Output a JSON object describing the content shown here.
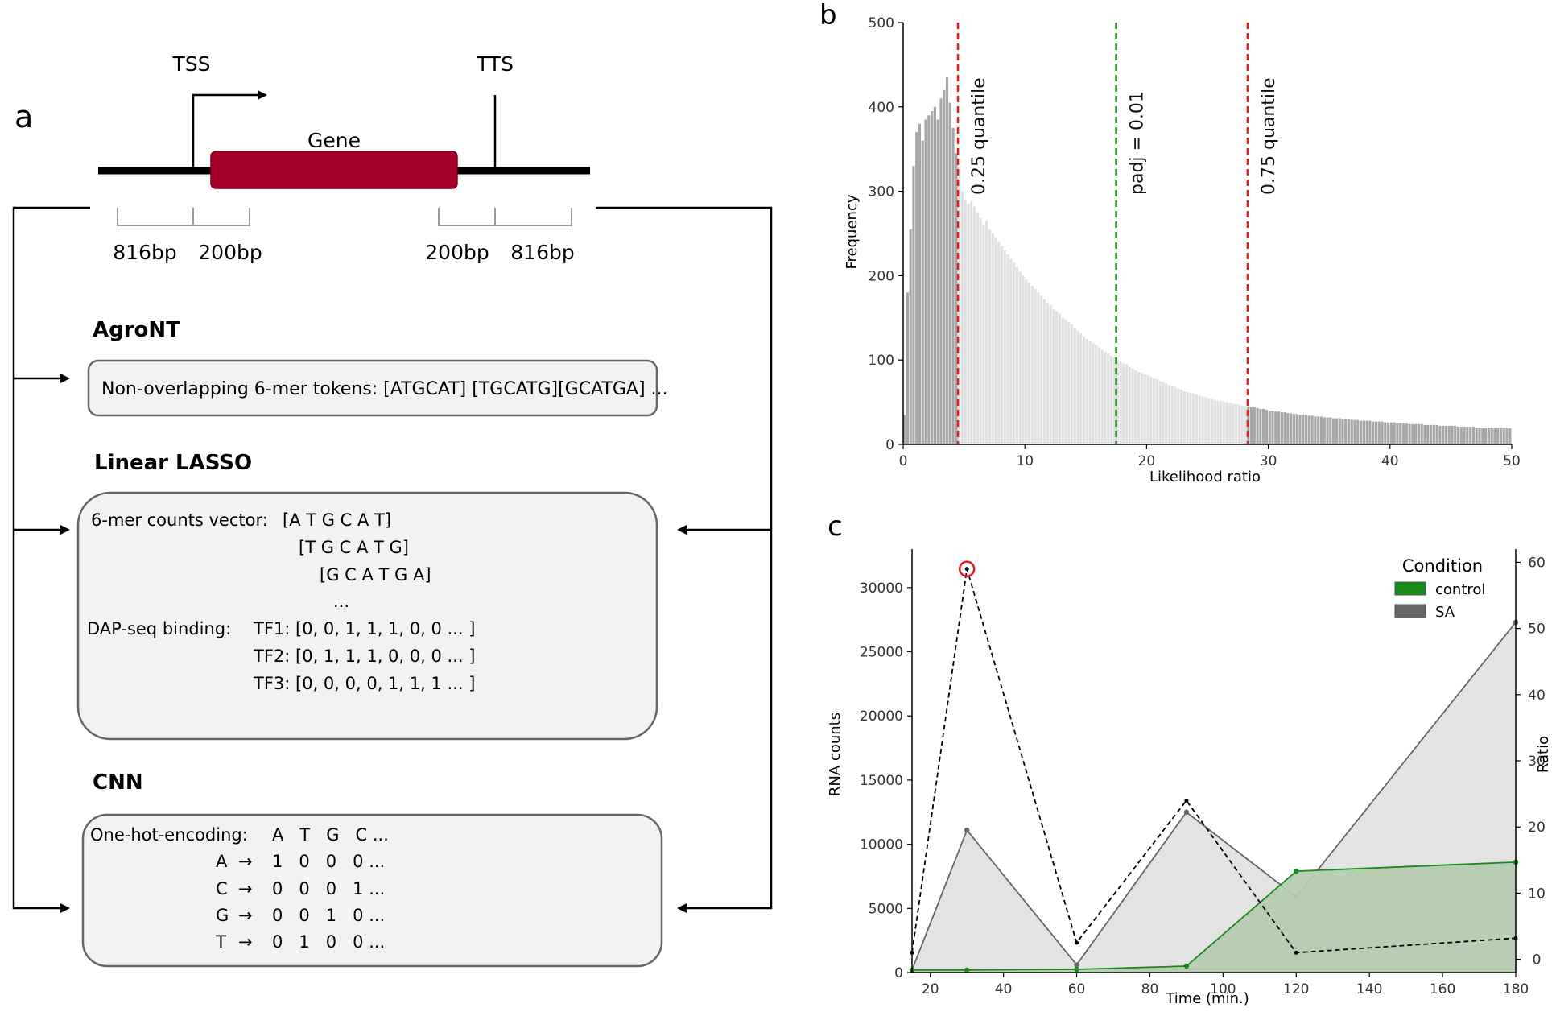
{
  "panel_a": {
    "panel_label": "a",
    "tss_label": "TSS",
    "tts_label": "TTS",
    "gene_label": "Gene",
    "bp_labels": [
      "816bp",
      "200bp",
      "200bp",
      "816bp"
    ],
    "agront": {
      "title": "AgroNT",
      "text": "Non-overlapping 6-mer tokens: [ATGCAT] [TGCATG][GCATGA] ..."
    },
    "lasso": {
      "title": "Linear LASSO",
      "kmer_label": "6-mer counts vector:",
      "kmer_rows": [
        "[A T G C A T]",
        "[T G C A T G]",
        "[G C A T G A]",
        "..."
      ],
      "dap_label": "DAP-seq binding:",
      "tf_rows": [
        "TF1: [0, 0, 1, 1, 1, 0, 0 ... ]",
        "TF2: [0, 1, 1, 1, 0, 0, 0 ... ]",
        "TF3: [0, 0, 0, 0, 1, 1, 1 ... ]"
      ]
    },
    "cnn": {
      "title": "CNN",
      "onehot_label": "One-hot-encoding:",
      "header": "A   T   G   C ...",
      "rows": [
        {
          "base": "A",
          "arrow": "→",
          "vals": "1   0   0   0 ..."
        },
        {
          "base": "C",
          "arrow": "→",
          "vals": "0   0   0   1 ..."
        },
        {
          "base": "G",
          "arrow": "→",
          "vals": "0   0   1   0 ..."
        },
        {
          "base": "T",
          "arrow": "→",
          "vals": "0   1   0   0 ..."
        }
      ]
    },
    "colors": {
      "gene": "#a50026",
      "box_fill": "#f2f2f2",
      "box_stroke": "#666666"
    }
  },
  "chart_data": [
    {
      "panel_label": "b",
      "type": "bar",
      "xlabel": "Likelihood ratio",
      "ylabel": "Frequency",
      "xlim": [
        0,
        50
      ],
      "ylim": [
        0,
        500
      ],
      "xticks": [
        0,
        10,
        20,
        30,
        40,
        50
      ],
      "yticks": [
        0,
        100,
        200,
        300,
        400,
        500
      ],
      "bin_width": 0.25,
      "values": [
        35,
        180,
        255,
        330,
        370,
        380,
        360,
        385,
        390,
        395,
        400,
        385,
        410,
        420,
        435,
        405,
        375,
        345,
        330,
        300,
        290,
        285,
        288,
        282,
        275,
        268,
        260,
        265,
        255,
        250,
        245,
        240,
        235,
        230,
        225,
        220,
        215,
        210,
        205,
        200,
        195,
        192,
        188,
        184,
        180,
        176,
        172,
        168,
        165,
        160,
        158,
        155,
        150,
        148,
        145,
        142,
        138,
        135,
        132,
        128,
        125,
        122,
        120,
        118,
        115,
        112,
        110,
        108,
        105,
        103,
        100,
        98,
        96,
        95,
        92,
        90,
        88,
        86,
        85,
        83,
        82,
        80,
        78,
        77,
        75,
        74,
        72,
        70,
        69,
        68,
        66,
        65,
        63,
        62,
        61,
        60,
        59,
        58,
        57,
        56,
        55,
        54,
        53,
        52,
        52,
        51,
        50,
        49,
        48,
        48,
        47,
        46,
        46,
        45,
        44,
        44,
        43,
        42,
        42,
        41,
        40,
        40,
        39,
        39,
        38,
        38,
        37,
        37,
        36,
        36,
        35,
        35,
        35,
        34,
        34,
        33,
        33,
        33,
        32,
        32,
        32,
        31,
        31,
        31,
        30,
        30,
        30,
        29,
        29,
        29,
        28,
        28,
        28,
        28,
        27,
        27,
        27,
        27,
        26,
        26,
        26,
        26,
        25,
        25,
        25,
        25,
        24,
        24,
        24,
        24,
        24,
        23,
        23,
        23,
        23,
        23,
        22,
        22,
        22,
        22,
        22,
        22,
        21,
        21,
        21,
        21,
        21,
        21,
        20,
        20,
        20,
        20,
        20,
        20,
        19,
        19,
        19,
        19,
        19,
        19
      ],
      "highlight_below": 4.5,
      "highlight_above": 28.3,
      "vlines": [
        {
          "x": 4.5,
          "label": "0.25 quantile",
          "color": "#e41a1c"
        },
        {
          "x": 17.5,
          "label": "padj = 0.01",
          "color": "#1a8a1a"
        },
        {
          "x": 28.3,
          "label": "0.75 quantile",
          "color": "#e41a1c"
        }
      ],
      "colors": {
        "dark": "#a6a6a6",
        "light": "#e0e0e0"
      }
    },
    {
      "panel_label": "c",
      "type": "area",
      "xlabel": "Time (min.)",
      "ylabel": "RNA counts",
      "y2label": "Ratio",
      "xlim": [
        15,
        180
      ],
      "ylim": [
        0,
        33000
      ],
      "y2lim": [
        -2,
        62
      ],
      "xticks": [
        20,
        40,
        60,
        80,
        100,
        120,
        140,
        160,
        180
      ],
      "yticks": [
        0,
        5000,
        10000,
        15000,
        20000,
        25000,
        30000
      ],
      "y2ticks": [
        0,
        10,
        20,
        30,
        40,
        50,
        60
      ],
      "x": [
        15,
        30,
        60,
        90,
        120,
        180
      ],
      "legend_title": "Condition",
      "legend_position": "top-right",
      "series": [
        {
          "name": "control",
          "values": [
            200,
            200,
            250,
            500,
            7900,
            8600
          ],
          "color": "#1a8a1a",
          "fill": "#b5ccb0"
        },
        {
          "name": "SA",
          "values": [
            200,
            11100,
            600,
            12500,
            5900,
            27300
          ],
          "color": "#666666",
          "fill": "#e2e2e2"
        }
      ],
      "ratio": {
        "values": [
          1,
          59,
          2.5,
          24,
          1,
          3.2
        ],
        "color": "#000000"
      },
      "highlight_point": {
        "x": 30,
        "ratio": 59,
        "color": "#e41a1c"
      }
    }
  ]
}
